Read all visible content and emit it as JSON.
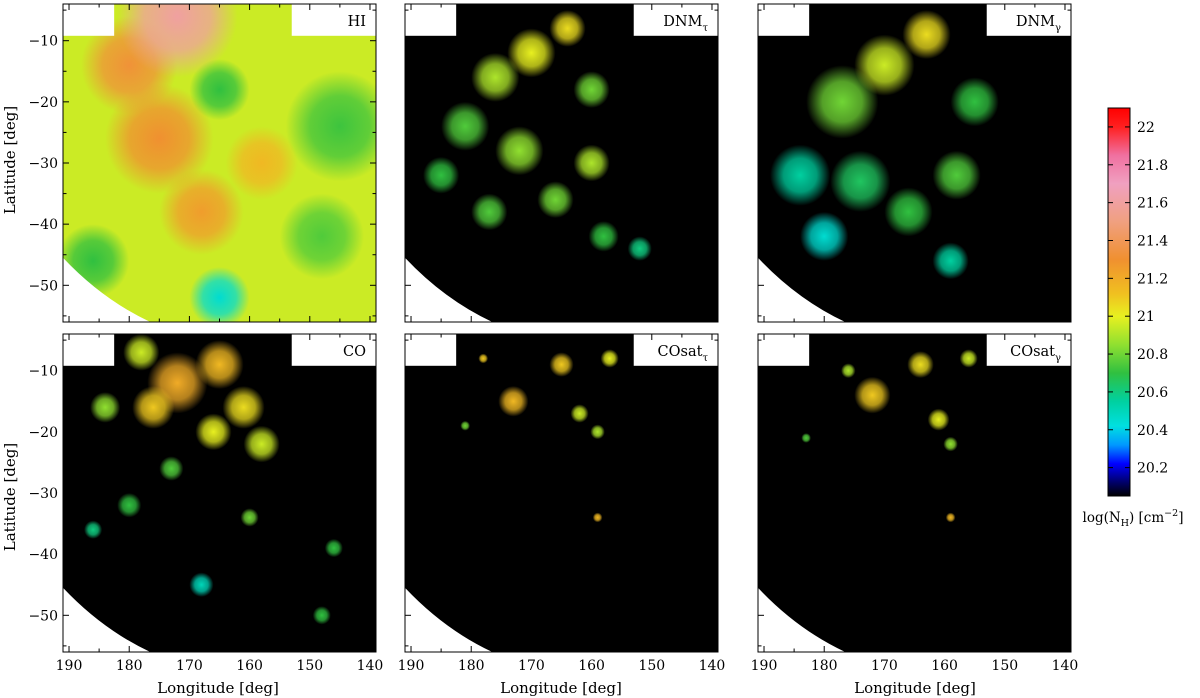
{
  "chart_data": {
    "type": "heatmap",
    "x_axis": {
      "label": "Longitude [deg]",
      "range": [
        191,
        139
      ],
      "ticks": [
        190,
        180,
        170,
        160,
        150,
        140
      ],
      "minor_tick_step": 5
    },
    "y_axis": {
      "label": "Latitude [deg]",
      "range": [
        -56,
        -4
      ],
      "top_row_ticks": [
        -10,
        -20,
        -30,
        -40,
        -50
      ],
      "bottom_row_ticks": [
        -10,
        -20,
        -30,
        -40,
        -50
      ],
      "minor_tick_step": 5
    },
    "colorbar": {
      "label_main": "log(N",
      "label_sub": "H",
      "label_unit_open": ") [cm",
      "label_exponent": "−2",
      "label_unit_close": "]",
      "range": [
        20.05,
        22.1
      ],
      "ticks": [
        "22",
        "21.8",
        "21.6",
        "21.4",
        "21.2",
        "21",
        "20.8",
        "20.6",
        "20.4",
        "20.2"
      ],
      "tick_values": [
        22.0,
        21.8,
        21.6,
        21.4,
        21.2,
        21.0,
        20.8,
        20.6,
        20.4,
        20.2
      ],
      "stops": [
        {
          "v": 20.05,
          "c": "#000000"
        },
        {
          "v": 20.12,
          "c": "#000066"
        },
        {
          "v": 20.22,
          "c": "#0000ff"
        },
        {
          "v": 20.32,
          "c": "#0099ff"
        },
        {
          "v": 20.42,
          "c": "#00e0e0"
        },
        {
          "v": 20.55,
          "c": "#00d0a0"
        },
        {
          "v": 20.7,
          "c": "#30c040"
        },
        {
          "v": 20.85,
          "c": "#90e030"
        },
        {
          "v": 21.0,
          "c": "#e8f020"
        },
        {
          "v": 21.12,
          "c": "#f0c020"
        },
        {
          "v": 21.3,
          "c": "#f09030"
        },
        {
          "v": 21.5,
          "c": "#f0a080"
        },
        {
          "v": 21.7,
          "c": "#f0a0c0"
        },
        {
          "v": 21.85,
          "c": "#f070a0"
        },
        {
          "v": 22.0,
          "c": "#ff2020"
        },
        {
          "v": 22.1,
          "c": "#ff0000"
        }
      ]
    },
    "panels": [
      {
        "id": "HI",
        "label": "HI",
        "label_sub": "",
        "background_level": 20.95,
        "blobs": [
          {
            "lon": 175,
            "lat": -26,
            "r": 9,
            "v": 21.3
          },
          {
            "lon": 168,
            "lat": -38,
            "r": 7,
            "v": 21.25
          },
          {
            "lon": 180,
            "lat": -14,
            "r": 8,
            "v": 21.32
          },
          {
            "lon": 165,
            "lat": -18,
            "r": 5,
            "v": 20.7
          },
          {
            "lon": 145,
            "lat": -24,
            "r": 9,
            "v": 20.72
          },
          {
            "lon": 148,
            "lat": -42,
            "r": 7,
            "v": 20.75
          },
          {
            "lon": 165,
            "lat": -52,
            "r": 5,
            "v": 20.45
          },
          {
            "lon": 186,
            "lat": -46,
            "r": 6,
            "v": 20.7
          },
          {
            "lon": 158,
            "lat": -30,
            "r": 6,
            "v": 21.15
          },
          {
            "lon": 172,
            "lat": -6,
            "r": 10,
            "v": 21.6
          }
        ]
      },
      {
        "id": "DNM_tau",
        "label": "DNM",
        "label_sub": "τ",
        "background_level": 20.05,
        "blobs": [
          {
            "lon": 176,
            "lat": -16,
            "r": 4,
            "v": 20.9
          },
          {
            "lon": 170,
            "lat": -12,
            "r": 4,
            "v": 21.0
          },
          {
            "lon": 164,
            "lat": -8,
            "r": 3,
            "v": 21.05
          },
          {
            "lon": 181,
            "lat": -24,
            "r": 4,
            "v": 20.75
          },
          {
            "lon": 185,
            "lat": -32,
            "r": 3,
            "v": 20.7
          },
          {
            "lon": 172,
            "lat": -28,
            "r": 4,
            "v": 20.85
          },
          {
            "lon": 166,
            "lat": -36,
            "r": 3,
            "v": 20.8
          },
          {
            "lon": 160,
            "lat": -30,
            "r": 3,
            "v": 20.9
          },
          {
            "lon": 158,
            "lat": -42,
            "r": 2.5,
            "v": 20.7
          },
          {
            "lon": 177,
            "lat": -38,
            "r": 3,
            "v": 20.75
          },
          {
            "lon": 160,
            "lat": -18,
            "r": 3,
            "v": 20.8
          },
          {
            "lon": 152,
            "lat": -44,
            "r": 2,
            "v": 20.6
          }
        ]
      },
      {
        "id": "DNM_gamma",
        "label": "DNM",
        "label_sub": "γ",
        "background_level": 20.05,
        "blobs": [
          {
            "lon": 177,
            "lat": -20,
            "r": 6,
            "v": 20.8
          },
          {
            "lon": 170,
            "lat": -14,
            "r": 5,
            "v": 20.95
          },
          {
            "lon": 163,
            "lat": -9,
            "r": 4,
            "v": 21.05
          },
          {
            "lon": 184,
            "lat": -32,
            "r": 5,
            "v": 20.55
          },
          {
            "lon": 174,
            "lat": -33,
            "r": 5,
            "v": 20.65
          },
          {
            "lon": 166,
            "lat": -38,
            "r": 4,
            "v": 20.7
          },
          {
            "lon": 158,
            "lat": -32,
            "r": 4,
            "v": 20.75
          },
          {
            "lon": 159,
            "lat": -46,
            "r": 3,
            "v": 20.55
          },
          {
            "lon": 155,
            "lat": -20,
            "r": 4,
            "v": 20.7
          },
          {
            "lon": 180,
            "lat": -42,
            "r": 4,
            "v": 20.45
          }
        ]
      },
      {
        "id": "CO",
        "label": "CO",
        "label_sub": "",
        "background_level": 20.05,
        "blobs": [
          {
            "lon": 172,
            "lat": -12,
            "r": 5,
            "v": 21.2
          },
          {
            "lon": 165,
            "lat": -9,
            "r": 4,
            "v": 21.15
          },
          {
            "lon": 176,
            "lat": -16,
            "r": 3.5,
            "v": 21.1
          },
          {
            "lon": 161,
            "lat": -16,
            "r": 3.5,
            "v": 21.05
          },
          {
            "lon": 166,
            "lat": -20,
            "r": 3,
            "v": 21.0
          },
          {
            "lon": 158,
            "lat": -22,
            "r": 3,
            "v": 20.95
          },
          {
            "lon": 184,
            "lat": -16,
            "r": 2.5,
            "v": 20.85
          },
          {
            "lon": 178,
            "lat": -7,
            "r": 3,
            "v": 20.95
          },
          {
            "lon": 173,
            "lat": -26,
            "r": 2,
            "v": 20.75
          },
          {
            "lon": 180,
            "lat": -32,
            "r": 2,
            "v": 20.7
          },
          {
            "lon": 186,
            "lat": -36,
            "r": 1.5,
            "v": 20.6
          },
          {
            "lon": 160,
            "lat": -34,
            "r": 1.5,
            "v": 20.8
          },
          {
            "lon": 168,
            "lat": -45,
            "r": 2,
            "v": 20.5
          },
          {
            "lon": 146,
            "lat": -39,
            "r": 1.5,
            "v": 20.7
          },
          {
            "lon": 148,
            "lat": -50,
            "r": 1.5,
            "v": 20.7
          }
        ]
      },
      {
        "id": "COsat_tau",
        "label": "COsat",
        "label_sub": "τ",
        "background_level": 20.05,
        "blobs": [
          {
            "lon": 173,
            "lat": -15,
            "r": 2.5,
            "v": 21.15
          },
          {
            "lon": 165,
            "lat": -9,
            "r": 2,
            "v": 21.1
          },
          {
            "lon": 162,
            "lat": -17,
            "r": 1.5,
            "v": 20.95
          },
          {
            "lon": 159,
            "lat": -20,
            "r": 1.2,
            "v": 20.9
          },
          {
            "lon": 157,
            "lat": -8,
            "r": 1.5,
            "v": 21.0
          },
          {
            "lon": 178,
            "lat": -8,
            "r": 0.8,
            "v": 21.1
          },
          {
            "lon": 159,
            "lat": -34,
            "r": 0.8,
            "v": 21.15
          },
          {
            "lon": 181,
            "lat": -19,
            "r": 0.8,
            "v": 20.8
          }
        ]
      },
      {
        "id": "COsat_gamma",
        "label": "COsat",
        "label_sub": "γ",
        "background_level": 20.05,
        "blobs": [
          {
            "lon": 172,
            "lat": -14,
            "r": 3,
            "v": 21.1
          },
          {
            "lon": 164,
            "lat": -9,
            "r": 2.2,
            "v": 21.05
          },
          {
            "lon": 161,
            "lat": -18,
            "r": 1.8,
            "v": 21.0
          },
          {
            "lon": 159,
            "lat": -22,
            "r": 1.2,
            "v": 20.85
          },
          {
            "lon": 156,
            "lat": -8,
            "r": 1.5,
            "v": 20.95
          },
          {
            "lon": 176,
            "lat": -10,
            "r": 1.2,
            "v": 20.9
          },
          {
            "lon": 159,
            "lat": -34,
            "r": 0.8,
            "v": 21.15
          },
          {
            "lon": 183,
            "lat": -21,
            "r": 0.8,
            "v": 20.75
          }
        ]
      }
    ],
    "masked_regions": {
      "top_left_box": {
        "lon": [
          191,
          182.5
        ],
        "lat": [
          -4,
          -9.2
        ]
      },
      "top_right_box": {
        "lon": [
          153,
          139
        ],
        "lat": [
          -4,
          -9.2
        ]
      },
      "lower_left_wedge": "white wedge outside the survey footprint in the lower-left corner"
    },
    "grid": false,
    "legend": "none"
  }
}
